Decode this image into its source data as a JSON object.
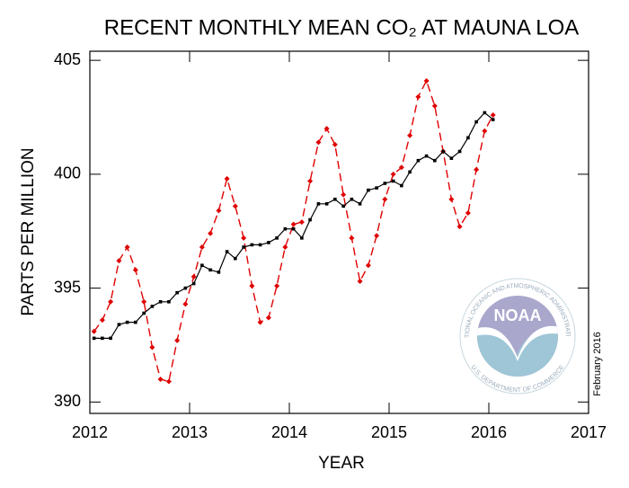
{
  "chart_data": {
    "type": "line",
    "title": "RECENT MONTHLY MEAN CO₂ AT MAUNA LOA",
    "x_label": "YEAR",
    "y_label": "PARTS PER MILLION",
    "x": [
      2012.042,
      2012.125,
      2012.208,
      2012.292,
      2012.375,
      2012.458,
      2012.542,
      2012.625,
      2012.708,
      2012.792,
      2012.875,
      2012.958,
      2013.042,
      2013.125,
      2013.208,
      2013.292,
      2013.375,
      2013.458,
      2013.542,
      2013.625,
      2013.708,
      2013.792,
      2013.875,
      2013.958,
      2014.042,
      2014.125,
      2014.208,
      2014.292,
      2014.375,
      2014.458,
      2014.542,
      2014.625,
      2014.708,
      2014.792,
      2014.875,
      2014.958,
      2015.042,
      2015.125,
      2015.208,
      2015.292,
      2015.375,
      2015.458,
      2015.542,
      2015.625,
      2015.708,
      2015.792,
      2015.875,
      2015.958,
      2016.042
    ],
    "series": [
      {
        "color": "#e00000",
        "dashed": true,
        "marker": "diamond",
        "values": [
          393.1,
          393.6,
          394.4,
          396.2,
          396.8,
          395.8,
          394.4,
          392.4,
          391.0,
          390.9,
          392.7,
          394.3,
          395.5,
          396.8,
          397.4,
          398.4,
          399.8,
          398.6,
          397.2,
          395.1,
          393.5,
          393.7,
          395.1,
          396.8,
          397.8,
          397.9,
          399.7,
          401.4,
          402.0,
          401.3,
          399.1,
          397.2,
          395.3,
          396.0,
          397.3,
          398.9,
          400.0,
          400.3,
          401.7,
          403.4,
          404.1,
          403.0,
          401.0,
          398.9,
          397.7,
          398.3,
          400.2,
          401.9,
          402.6
        ]
      },
      {
        "color": "#000000",
        "dashed": false,
        "marker": "square",
        "values": [
          392.8,
          392.8,
          392.8,
          393.4,
          393.5,
          393.5,
          393.9,
          394.2,
          394.4,
          394.4,
          394.8,
          395.0,
          395.2,
          396.0,
          395.8,
          395.7,
          396.6,
          396.3,
          396.8,
          396.9,
          396.9,
          397.0,
          397.2,
          397.6,
          397.6,
          397.2,
          398.0,
          398.7,
          398.7,
          398.9,
          398.6,
          398.9,
          398.7,
          399.3,
          399.4,
          399.6,
          399.7,
          399.5,
          400.1,
          400.6,
          400.8,
          400.6,
          401.0,
          400.7,
          401.0,
          401.6,
          402.3,
          402.7,
          402.4
        ]
      }
    ],
    "xlim": [
      2012,
      2017
    ],
    "xticks": [
      2012,
      2013,
      2014,
      2015,
      2016,
      2017
    ],
    "ylim": [
      389.5,
      405.4
    ],
    "yticks": [
      390,
      395,
      400,
      405
    ],
    "annotations": {
      "date": "February 2016",
      "logo": "NOAA",
      "logo_top": "NATIONAL OCEANIC AND ATMOSPHERIC ADMINISTRATION",
      "logo_bottom": "U.S. DEPARTMENT OF COMMERCE"
    }
  }
}
